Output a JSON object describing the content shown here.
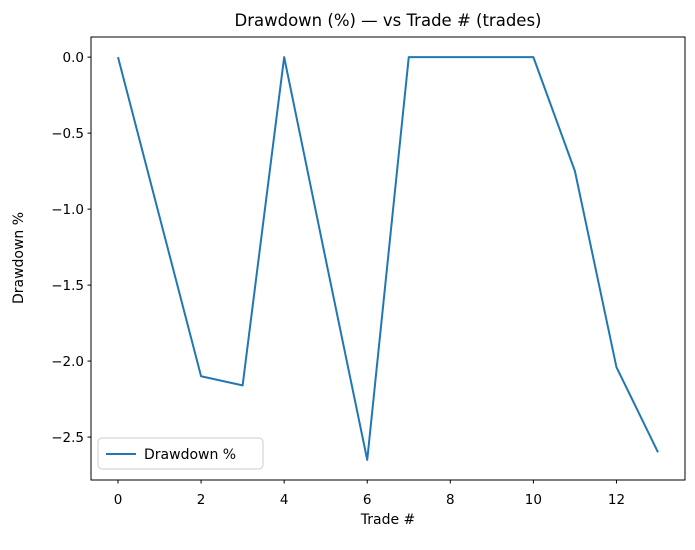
{
  "chart_data": {
    "type": "line",
    "title": "Drawdown (%) — vs Trade # (trades)",
    "xlabel": "Trade #",
    "ylabel": "Drawdown %",
    "x": [
      0,
      1,
      2,
      3,
      4,
      5,
      6,
      7,
      8,
      9,
      10,
      11,
      12,
      13
    ],
    "series": [
      {
        "name": "Drawdown %",
        "color": "#1f77b4",
        "values": [
          0.0,
          -1.05,
          -2.1,
          -2.16,
          0.0,
          -1.33,
          -2.65,
          0.0,
          0.0,
          0.0,
          0.0,
          -0.75,
          -2.04,
          -2.6
        ]
      }
    ],
    "xlim": [
      -0.65,
      13.65
    ],
    "ylim": [
      -2.7825,
      0.1325
    ],
    "xticks": [
      0,
      2,
      4,
      6,
      8,
      10,
      12
    ],
    "xtick_labels": [
      "0",
      "2",
      "4",
      "6",
      "8",
      "10",
      "12"
    ],
    "yticks": [
      0.0,
      -0.5,
      -1.0,
      -1.5,
      -2.0,
      -2.5
    ],
    "ytick_labels": [
      "0.0",
      "−0.5",
      "−1.0",
      "−1.5",
      "−2.0",
      "−2.5"
    ],
    "grid": false,
    "legend_position": "lower left",
    "background_color": "#ffffff",
    "spine_color": "#000000",
    "legend_edge_color": "#cccccc"
  }
}
